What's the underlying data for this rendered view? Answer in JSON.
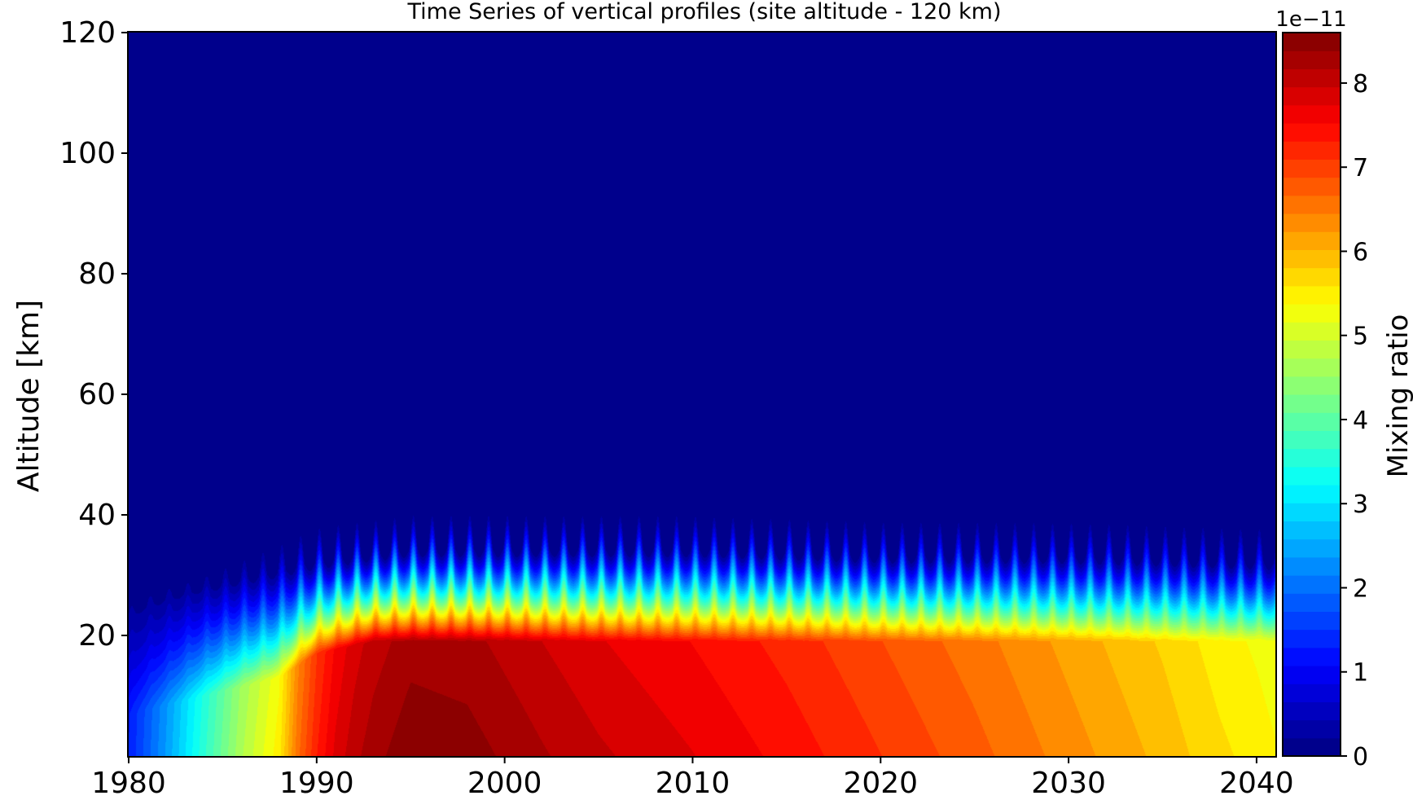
{
  "chart_data": {
    "type": "heatmap",
    "subtype": "filled-contour",
    "title": "Time Series of vertical profiles (site altitude - 120 km)",
    "xlabel": "",
    "ylabel": "Altitude [km]",
    "xlim": [
      1980,
      2041
    ],
    "ylim": [
      0,
      120
    ],
    "xticks": [
      1980,
      1990,
      2000,
      2010,
      2020,
      2030,
      2040
    ],
    "yticks": [
      20,
      40,
      60,
      80,
      100,
      120
    ],
    "colormap": "jet",
    "colorbar": {
      "label": "Mixing ratio",
      "offset_text": "1e−11",
      "scale": 1e-11,
      "range": [
        0,
        8.6
      ],
      "ticks": [
        0,
        1,
        2,
        3,
        4,
        5,
        6,
        7,
        8
      ],
      "levels": 40
    },
    "surface_value_by_year": {
      "years": [
        1980,
        1982,
        1984,
        1986,
        1988,
        1989,
        1990,
        1991,
        1992,
        1993,
        1995,
        1998,
        2002,
        2005,
        2010,
        2015,
        2020,
        2025,
        2030,
        2035,
        2038,
        2040,
        2041
      ],
      "values": [
        1.3,
        2.4,
        3.6,
        4.7,
        5.5,
        6.6,
        7.3,
        7.8,
        8.1,
        8.3,
        8.55,
        8.5,
        8.2,
        8.0,
        7.75,
        7.45,
        7.1,
        6.75,
        6.35,
        5.95,
        5.65,
        5.5,
        5.4
      ]
    },
    "gradient_top_altitude_km_by_year": {
      "years": [
        1980,
        1985,
        1990,
        1995,
        2000,
        2010,
        2020,
        2030,
        2041
      ],
      "values": [
        28,
        30,
        33,
        35,
        35,
        35,
        34,
        34,
        33
      ]
    },
    "plateau_top_altitude_km_by_year": {
      "years": [
        1980,
        1988,
        1990,
        1993,
        2000,
        2010,
        2020,
        2030,
        2041
      ],
      "values": [
        7,
        13,
        17,
        19,
        19,
        19,
        19,
        19,
        19
      ]
    },
    "seasonal_cycle": {
      "period_years": 1,
      "amplitude_km": 6,
      "peak_altitude_km_range": [
        38,
        43
      ]
    },
    "background_value": 0
  }
}
